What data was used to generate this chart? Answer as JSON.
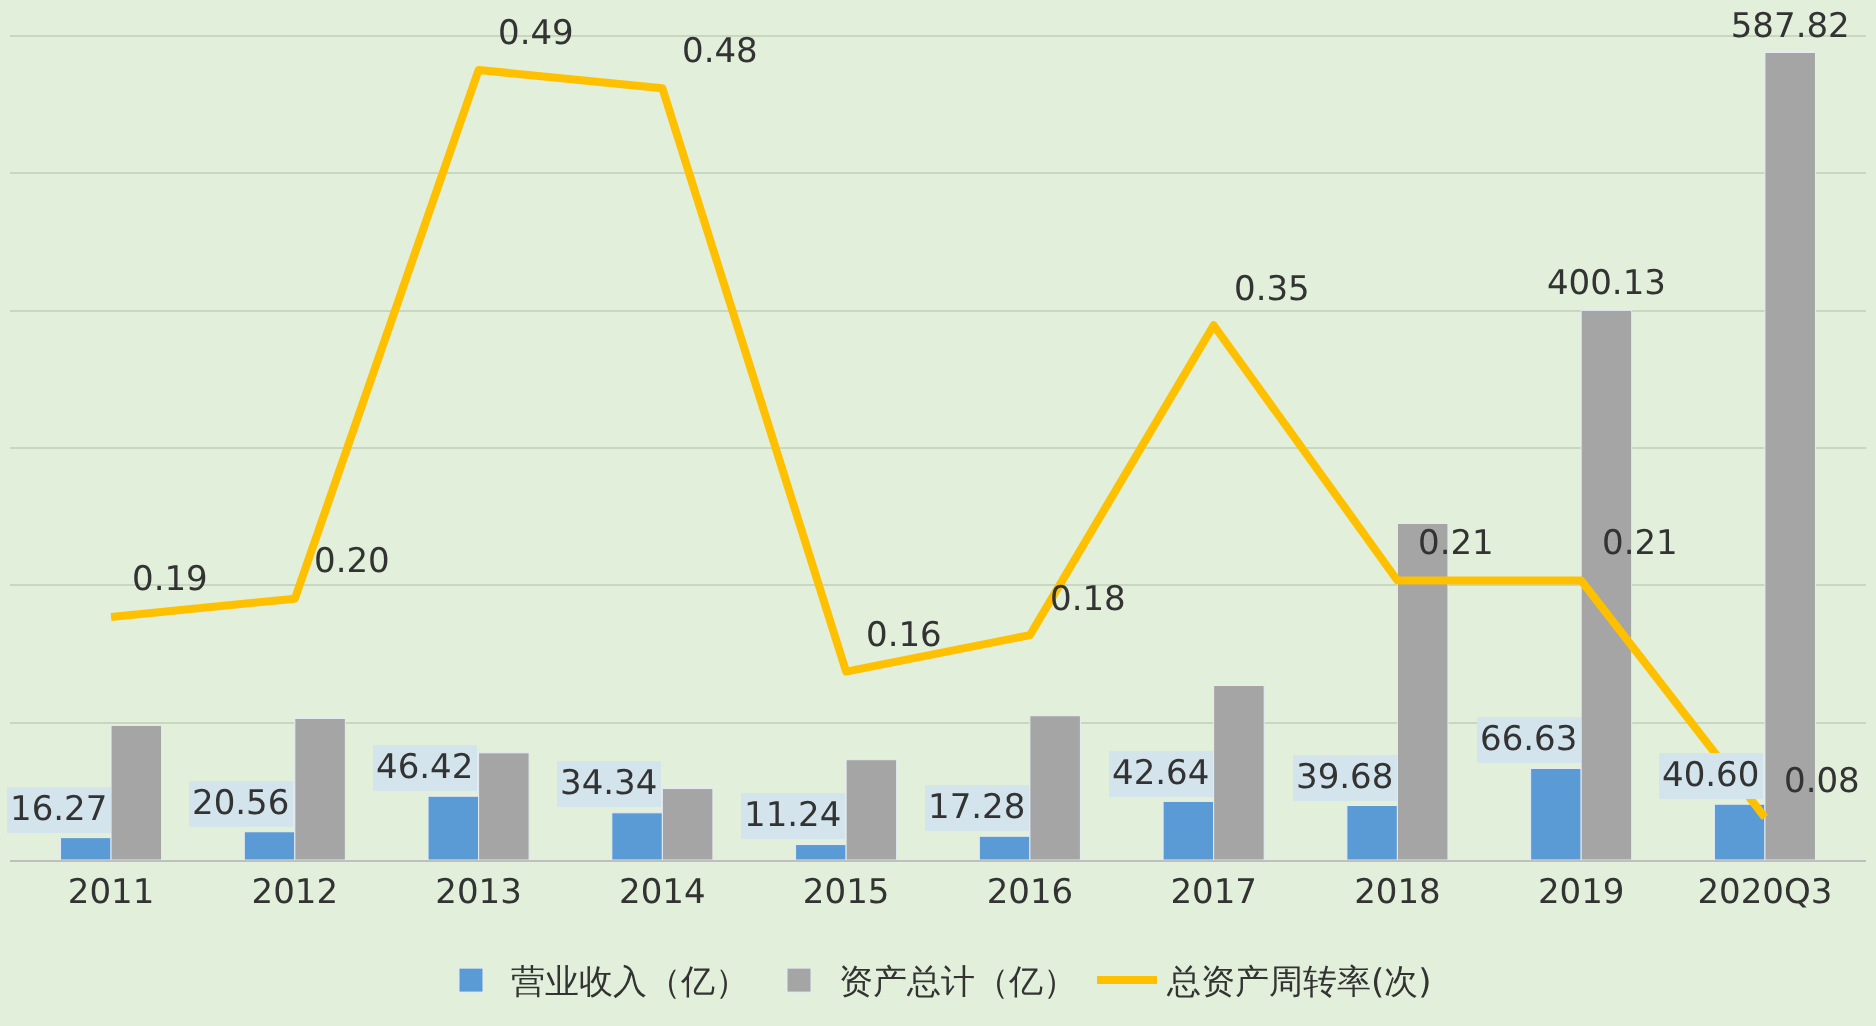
{
  "chart_data": {
    "type": "bar",
    "categories": [
      "2011",
      "2012",
      "2013",
      "2014",
      "2015",
      "2016",
      "2017",
      "2018",
      "2019",
      "2020Q3"
    ],
    "series": [
      {
        "name": "营业收入（亿）",
        "color": "#5b9bd5",
        "values": [
          16.27,
          20.56,
          46.42,
          34.34,
          11.24,
          17.28,
          42.64,
          39.68,
          66.63,
          40.6
        ],
        "value_labels": [
          "16.27",
          "20.56",
          "46.42",
          "34.34",
          "11.24",
          "17.28",
          "42.64",
          "39.68",
          "66.63",
          "40.60"
        ]
      },
      {
        "name": "资产总计（亿）",
        "color": "#a5a5a5",
        "values": [
          98,
          103,
          78,
          52,
          73,
          105,
          127,
          245,
          400.13,
          587.82
        ],
        "value_labels": [
          null,
          null,
          null,
          null,
          null,
          null,
          null,
          null,
          "400.13",
          "587.82"
        ]
      },
      {
        "name": "总资产周转率(次)",
        "type": "line",
        "axis": "y2",
        "color": "#ffc000",
        "values": [
          0.19,
          0.2,
          0.49,
          0.48,
          0.16,
          0.18,
          0.35,
          0.21,
          0.21,
          0.08
        ],
        "value_labels": [
          "0.19",
          "0.20",
          "0.49",
          "0.48",
          "0.16",
          "0.18",
          "0.35",
          "0.21",
          "0.21",
          "0.08"
        ]
      }
    ],
    "yticks": [
      {
        "value": 0,
        "label": null
      },
      {
        "value": 100,
        "label": null
      },
      {
        "value": 200,
        "label": null
      },
      {
        "value": 300,
        "label": null
      },
      {
        "value": 400,
        "label": null
      },
      {
        "value": 500,
        "label": null
      },
      {
        "value": 600,
        "label": null
      }
    ],
    "grid": "y",
    "legend": "bottom",
    "tick_labels": "x",
    "marker": "none",
    "line_style": "solid"
  }
}
